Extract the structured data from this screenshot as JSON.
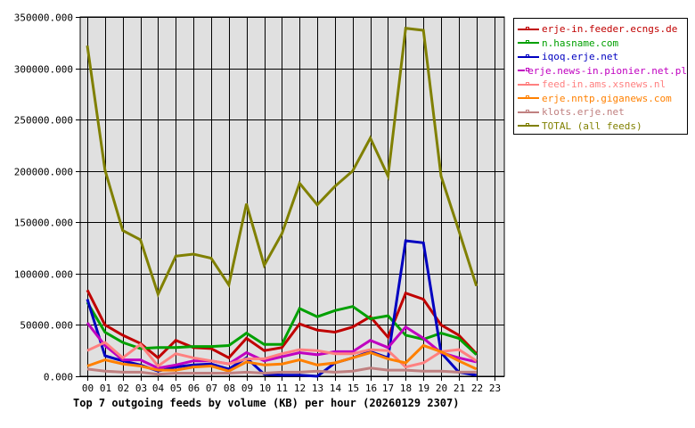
{
  "chart_data": {
    "type": "line",
    "title": "Top 7 outgoing feeds by volume (KB) per hour (20260129 2307)",
    "xlabel": "",
    "ylabel": "",
    "ylim": [
      0,
      350000
    ],
    "yticks": [
      "0.000",
      "50000.000",
      "100000.000",
      "150000.000",
      "200000.000",
      "250000.000",
      "300000.000",
      "350000.000"
    ],
    "categories": [
      "00",
      "01",
      "02",
      "03",
      "04",
      "05",
      "06",
      "07",
      "08",
      "09",
      "10",
      "11",
      "12",
      "13",
      "14",
      "15",
      "16",
      "17",
      "18",
      "19",
      "20",
      "21",
      "22",
      "23"
    ],
    "grid": true,
    "legend_position": "right",
    "series": [
      {
        "name": "erje-in.feeder.ecngs.de",
        "color": "#c00000",
        "values": [
          84000,
          50000,
          40000,
          32000,
          18000,
          35000,
          28000,
          27000,
          18000,
          37000,
          25000,
          28000,
          51000,
          45000,
          43000,
          48000,
          58000,
          38000,
          81000,
          75000,
          50000,
          40000,
          22000
        ]
      },
      {
        "name": "n.hasname.com",
        "color": "#00a000",
        "values": [
          72000,
          43000,
          33000,
          27000,
          28000,
          28000,
          29000,
          29000,
          30000,
          42000,
          31000,
          31000,
          66000,
          58000,
          64000,
          68000,
          56000,
          59000,
          40000,
          36000,
          42000,
          37000,
          21000
        ]
      },
      {
        "name": "iqoq.erje.net",
        "color": "#0000c0",
        "values": [
          75000,
          20000,
          15000,
          11000,
          5000,
          9000,
          11000,
          12000,
          7000,
          18000,
          2000,
          1000,
          1000,
          0,
          13000,
          18000,
          24000,
          18000,
          132000,
          130000,
          23000,
          4000,
          1000
        ]
      },
      {
        "name": "erje.news-in.pionier.net.pl",
        "color": "#c000c0",
        "values": [
          52000,
          30000,
          16000,
          16000,
          8000,
          11000,
          15000,
          15000,
          12000,
          23000,
          15000,
          19000,
          23000,
          21000,
          24000,
          24000,
          35000,
          28000,
          48000,
          37000,
          23000,
          18000,
          14000
        ]
      },
      {
        "name": "feed-in.ams.xsnews.nl",
        "color": "#ff8080",
        "values": [
          25000,
          33000,
          18000,
          31000,
          10000,
          22000,
          18000,
          15000,
          12000,
          17000,
          17000,
          22000,
          26000,
          25000,
          22000,
          22000,
          26000,
          25000,
          9000,
          13000,
          24000,
          26000,
          15000
        ]
      },
      {
        "name": "erje.nntp.giganews.com",
        "color": "#ff8000",
        "values": [
          10000,
          16000,
          12000,
          10000,
          6000,
          6000,
          9000,
          10000,
          5000,
          14000,
          11000,
          12000,
          16000,
          11000,
          13000,
          18000,
          23000,
          17000,
          13000,
          30000,
          24000,
          15000,
          7000
        ]
      },
      {
        "name": "klots.erje.net",
        "color": "#c08080",
        "values": [
          7000,
          5000,
          4000,
          4000,
          2000,
          3000,
          3000,
          3000,
          3000,
          4000,
          3000,
          4000,
          4000,
          5000,
          4000,
          5000,
          8000,
          6000,
          6000,
          5000,
          5000,
          4000,
          4000
        ]
      },
      {
        "name": "TOTAL (all feeds)",
        "color": "#808000",
        "values": [
          322000,
          201000,
          142000,
          133000,
          80000,
          117000,
          119000,
          115000,
          89000,
          168000,
          108000,
          139000,
          188000,
          167000,
          185000,
          200000,
          232000,
          195000,
          339000,
          337000,
          195000,
          142000,
          88000
        ]
      }
    ]
  }
}
